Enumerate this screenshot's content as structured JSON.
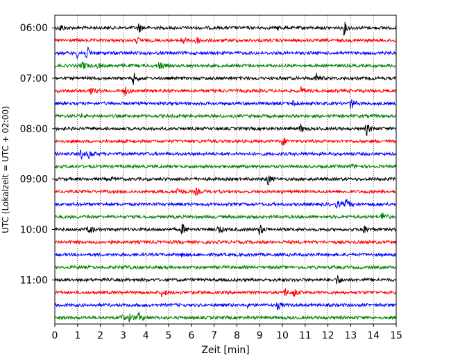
{
  "chart_data": {
    "type": "line",
    "title": "",
    "xlabel": "Zeit  [min]",
    "ylabel": "UTC (Lokalzeit = UTC + 02:00)",
    "xlim": [
      0,
      15
    ],
    "x_ticks": [
      "0",
      "1",
      "2",
      "3",
      "4",
      "5",
      "6",
      "7",
      "8",
      "9",
      "10",
      "11",
      "12",
      "13",
      "14",
      "15"
    ],
    "y_ticks": [
      "06:00",
      "07:00",
      "08:00",
      "09:00",
      "10:00",
      "11:00"
    ],
    "grid": "vertical dotted",
    "legend": "none",
    "row_colors": [
      "#000000",
      "#ff0000",
      "#0000ff",
      "#008000"
    ],
    "rows": [
      {
        "start": "06:00",
        "events": [
          {
            "t": 0.25,
            "a": 0.5
          },
          {
            "t": 3.7,
            "a": 0.6
          },
          {
            "t": 12.7,
            "a": 0.9
          },
          {
            "t": 9.8,
            "a": 0.2
          }
        ]
      },
      {
        "start": "06:15",
        "events": [
          {
            "t": 3.6,
            "a": 0.4
          },
          {
            "t": 5.6,
            "a": 0.5
          },
          {
            "t": 6.2,
            "a": 0.6
          }
        ]
      },
      {
        "start": "06:30",
        "events": [
          {
            "t": 1.0,
            "a": 0.6
          },
          {
            "t": 1.4,
            "a": 0.9
          }
        ]
      },
      {
        "start": "06:45",
        "events": [
          {
            "t": 1.2,
            "a": 0.7
          },
          {
            "t": 1.9,
            "a": 0.3
          },
          {
            "t": 4.6,
            "a": 0.6
          }
        ]
      },
      {
        "start": "07:00",
        "events": [
          {
            "t": 3.45,
            "a": 0.8
          },
          {
            "t": 11.5,
            "a": 0.6
          }
        ]
      },
      {
        "start": "07:15",
        "events": [
          {
            "t": 1.55,
            "a": 0.5
          },
          {
            "t": 3.05,
            "a": 0.7
          },
          {
            "t": 10.8,
            "a": 0.5
          }
        ]
      },
      {
        "start": "07:30",
        "events": [
          {
            "t": 10.5,
            "a": 0.5
          },
          {
            "t": 13.0,
            "a": 0.8
          }
        ]
      },
      {
        "start": "07:45",
        "events": [
          {
            "t": 1.2,
            "a": 0.15
          }
        ]
      },
      {
        "start": "08:00",
        "events": [
          {
            "t": 10.8,
            "a": 0.5
          },
          {
            "t": 13.7,
            "a": 0.8
          }
        ]
      },
      {
        "start": "08:15",
        "events": [
          {
            "t": 10.0,
            "a": 0.6
          }
        ]
      },
      {
        "start": "08:30",
        "events": [
          {
            "t": 1.15,
            "a": 0.6
          },
          {
            "t": 1.5,
            "a": 0.5
          }
        ]
      },
      {
        "start": "08:45",
        "events": [
          {
            "t": 13.0,
            "a": 0.3
          }
        ]
      },
      {
        "start": "09:00",
        "events": [
          {
            "t": 9.35,
            "a": 0.8
          },
          {
            "t": 2.5,
            "a": 0.2
          }
        ]
      },
      {
        "start": "09:15",
        "events": [
          {
            "t": 5.4,
            "a": 0.6
          },
          {
            "t": 6.2,
            "a": 0.4
          }
        ]
      },
      {
        "start": "09:30",
        "events": [
          {
            "t": 12.4,
            "a": 0.5
          },
          {
            "t": 12.8,
            "a": 0.7
          }
        ]
      },
      {
        "start": "09:45",
        "events": [
          {
            "t": 14.4,
            "a": 0.8
          }
        ]
      },
      {
        "start": "10:00",
        "events": [
          {
            "t": 1.5,
            "a": 0.7
          },
          {
            "t": 5.6,
            "a": 0.7
          },
          {
            "t": 7.2,
            "a": 0.6
          },
          {
            "t": 9.0,
            "a": 0.8
          },
          {
            "t": 13.5,
            "a": 0.9
          }
        ]
      },
      {
        "start": "10:15",
        "events": [
          {
            "t": 2.4,
            "a": 0.3
          }
        ]
      },
      {
        "start": "10:30",
        "events": [
          {
            "t": 5.6,
            "a": 0.2
          }
        ]
      },
      {
        "start": "10:45",
        "events": [
          {
            "t": 3.0,
            "a": 0.2
          }
        ]
      },
      {
        "start": "11:00",
        "events": [
          {
            "t": 12.4,
            "a": 0.7
          }
        ]
      },
      {
        "start": "11:15",
        "events": [
          {
            "t": 4.7,
            "a": 0.6
          },
          {
            "t": 10.1,
            "a": 0.5
          },
          {
            "t": 10.5,
            "a": 0.6
          }
        ]
      },
      {
        "start": "11:30",
        "events": [
          {
            "t": 9.8,
            "a": 0.5
          },
          {
            "t": 8.4,
            "a": 0.3
          }
        ]
      },
      {
        "start": "11:45",
        "events": [
          {
            "t": 2.9,
            "a": 0.4
          },
          {
            "t": 3.3,
            "a": 0.6
          },
          {
            "t": 3.7,
            "a": 0.6
          }
        ]
      }
    ]
  }
}
